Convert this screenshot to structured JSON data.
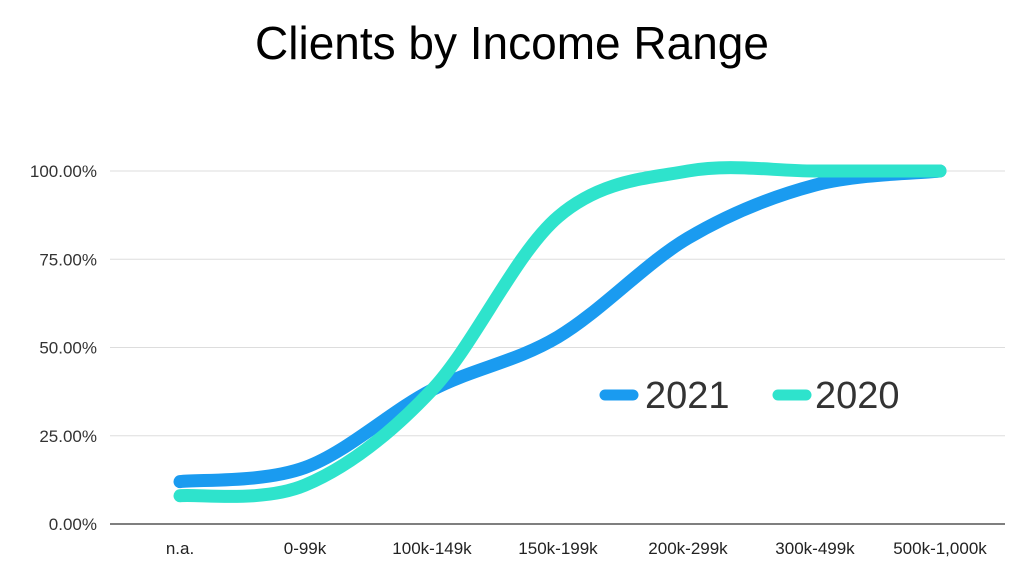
{
  "chart_data": {
    "type": "line",
    "title": "Clients by Income Range",
    "categories": [
      "n.a.",
      "0-99k",
      "100k-149k",
      "150k-199k",
      "200k-299k",
      "300k-499k",
      "500k-1,000k"
    ],
    "y_tick_labels": [
      "0.00%",
      "25.00%",
      "50.00%",
      "75.00%",
      "100.00%"
    ],
    "ylim": [
      0,
      100
    ],
    "yticks": [
      0,
      25,
      50,
      75,
      100
    ],
    "grid": true,
    "legend": "right",
    "series": [
      {
        "name": "2021",
        "color": "#1a9bf0",
        "values": [
          12,
          16,
          38,
          53,
          81,
          96,
          100
        ]
      },
      {
        "name": "2020",
        "color": "#2ee3cc",
        "values": [
          8,
          11,
          38,
          87,
          100,
          100,
          100
        ]
      }
    ]
  }
}
